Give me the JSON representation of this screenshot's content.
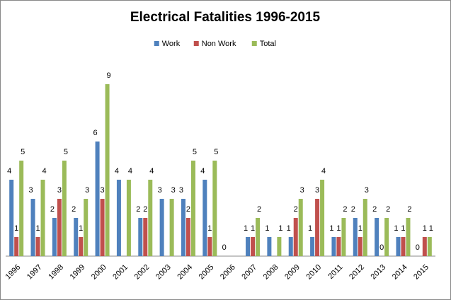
{
  "chart_data": {
    "type": "bar",
    "title": "Electrical Fatalities 1996-2015",
    "categories": [
      "1996",
      "1997",
      "1998",
      "1999",
      "2000",
      "2001",
      "2002",
      "2003",
      "2004",
      "2005",
      "2006",
      "2007",
      "2008",
      "2009",
      "2010",
      "2011",
      "2012",
      "2013",
      "2014",
      "2015"
    ],
    "series": [
      {
        "name": "Work",
        "color": "#4f81bd",
        "values": [
          4,
          3,
          2,
          2,
          6,
          4,
          2,
          3,
          3,
          4,
          0,
          1,
          1,
          1,
          1,
          1,
          2,
          2,
          1,
          0
        ]
      },
      {
        "name": "Non Work",
        "color": "#c0504d",
        "values": [
          1,
          1,
          3,
          1,
          3,
          null,
          2,
          null,
          2,
          1,
          null,
          1,
          null,
          2,
          3,
          1,
          1,
          0,
          1,
          1
        ]
      },
      {
        "name": "Total",
        "color": "#9bbb59",
        "values": [
          5,
          4,
          5,
          3,
          9,
          4,
          4,
          3,
          5,
          5,
          null,
          2,
          1,
          3,
          4,
          2,
          3,
          2,
          2,
          1
        ]
      }
    ],
    "ylim": [
      0,
      10
    ]
  }
}
